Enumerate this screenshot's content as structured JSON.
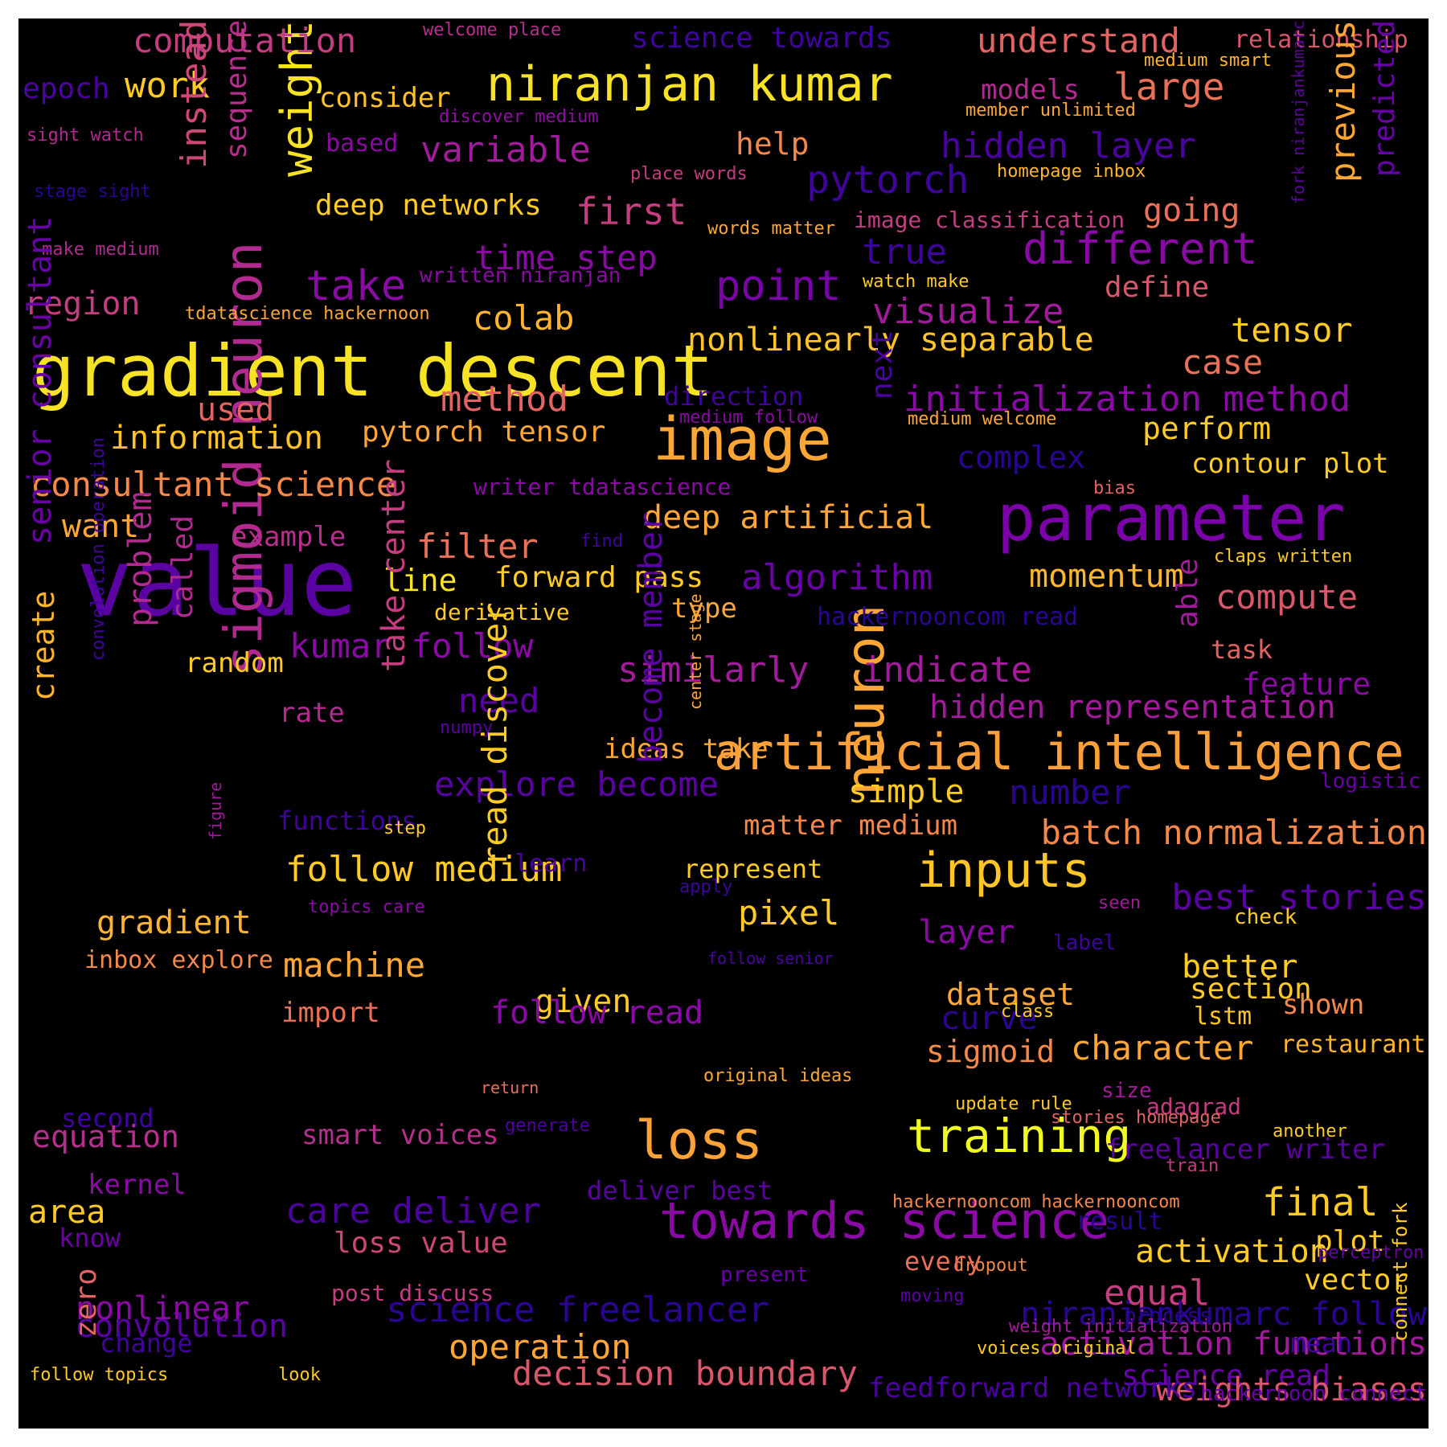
{
  "words": [
    {
      "text": "gradient descent",
      "color": "#f7e225"
    },
    {
      "text": "value",
      "color": "#5b02a3"
    },
    {
      "text": "parameter",
      "color": "#7a02a8"
    },
    {
      "text": "sigmoid neuron",
      "color": "#b02a8f"
    },
    {
      "text": "image",
      "color": "#fca636"
    },
    {
      "text": "neuron",
      "color": "#fca636"
    },
    {
      "text": "artificial intelligence",
      "color": "#fb9f3a"
    },
    {
      "text": "niranjan kumar",
      "color": "#f7e225"
    },
    {
      "text": "towards science",
      "color": "#8b0aa5"
    },
    {
      "text": "training",
      "color": "#f0f921"
    },
    {
      "text": "loss",
      "color": "#fba238"
    },
    {
      "text": "inputs",
      "color": "#fdc527"
    },
    {
      "text": "different",
      "color": "#8b0aa5"
    },
    {
      "text": "weight",
      "color": "#f7e225"
    },
    {
      "text": "point",
      "color": "#7a02a8"
    },
    {
      "text": "computation",
      "color": "#c33d80"
    },
    {
      "text": "understand",
      "color": "#e16462"
    },
    {
      "text": "relationship",
      "color": "#d8576b"
    },
    {
      "text": "science towards",
      "color": "#3e049c"
    },
    {
      "text": "welcome place",
      "color": "#b52f8c"
    },
    {
      "text": "medium smart",
      "color": "#fdb42f"
    },
    {
      "text": "epoch",
      "color": "#4c02a1"
    },
    {
      "text": "work",
      "color": "#fdca26"
    },
    {
      "text": "consider",
      "color": "#fdc328"
    },
    {
      "text": "models",
      "color": "#b12a90"
    },
    {
      "text": "large",
      "color": "#e97158"
    },
    {
      "text": "member unlimited",
      "color": "#fca636"
    },
    {
      "text": "sight watch",
      "color": "#b02a8f"
    },
    {
      "text": "based",
      "color": "#8b0aa5"
    },
    {
      "text": "discover medium",
      "color": "#8f0da4"
    },
    {
      "text": "variable",
      "color": "#a11b9b"
    },
    {
      "text": "help",
      "color": "#f48849"
    },
    {
      "text": "hidden layer",
      "color": "#4c02a1"
    },
    {
      "text": "predicted",
      "color": "#6a00a8"
    },
    {
      "text": "previous",
      "color": "#fca636"
    },
    {
      "text": "fork niranjankumarc",
      "color": "#5b02a3"
    },
    {
      "text": "instead",
      "color": "#cc4778"
    },
    {
      "text": "sequence",
      "color": "#b52f8c"
    },
    {
      "text": "stage sight",
      "color": "#2a0593"
    },
    {
      "text": "place words",
      "color": "#c33d80"
    },
    {
      "text": "homepage inbox",
      "color": "#fdb42f"
    },
    {
      "text": "pytorch",
      "color": "#3e049c"
    },
    {
      "text": "deep networks",
      "color": "#fdca26"
    },
    {
      "text": "first",
      "color": "#c33d80"
    },
    {
      "text": "image classification",
      "color": "#c33d80"
    },
    {
      "text": "going",
      "color": "#e97158"
    },
    {
      "text": "make medium",
      "color": "#b02a8f"
    },
    {
      "text": "words matter",
      "color": "#fca636"
    },
    {
      "text": "time step",
      "color": "#8b0aa5"
    },
    {
      "text": "true",
      "color": "#3e049c"
    },
    {
      "text": "take",
      "color": "#8b0aa5"
    },
    {
      "text": "written niranjan",
      "color": "#8b0aa5"
    },
    {
      "text": "watch make",
      "color": "#fdca26"
    },
    {
      "text": "define",
      "color": "#d8576b"
    },
    {
      "text": "region",
      "color": "#c33d80"
    },
    {
      "text": "tdatascience hackernoon",
      "color": "#fca636"
    },
    {
      "text": "colab",
      "color": "#fdb42f"
    },
    {
      "text": "visualize",
      "color": "#a11b9b"
    },
    {
      "text": "tensor",
      "color": "#fdca26"
    },
    {
      "text": "nonlinearly separable",
      "color": "#fdc328"
    },
    {
      "text": "case",
      "color": "#e97158"
    },
    {
      "text": "used",
      "color": "#e16462"
    },
    {
      "text": "method",
      "color": "#e16462"
    },
    {
      "text": "direction",
      "color": "#3e049c"
    },
    {
      "text": "initialization method",
      "color": "#8b0aa5"
    },
    {
      "text": "medium follow",
      "color": "#8b0aa5"
    },
    {
      "text": "medium welcome",
      "color": "#fca636"
    },
    {
      "text": "information",
      "color": "#fdc328"
    },
    {
      "text": "pytorch tensor",
      "color": "#fca636"
    },
    {
      "text": "next",
      "color": "#4c02a1"
    },
    {
      "text": "perform",
      "color": "#fdca26"
    },
    {
      "text": "complex",
      "color": "#2a0593"
    },
    {
      "text": "contour plot",
      "color": "#fdca26"
    },
    {
      "text": "consultant science",
      "color": "#f48849"
    },
    {
      "text": "writer tdatascience",
      "color": "#8b0aa5"
    },
    {
      "text": "bias",
      "color": "#e16462"
    },
    {
      "text": "want",
      "color": "#fca636"
    },
    {
      "text": "example",
      "color": "#b52f8c"
    },
    {
      "text": "deep artificial",
      "color": "#fca636"
    },
    {
      "text": "filter",
      "color": "#e97158"
    },
    {
      "text": "find",
      "color": "#3e049c"
    },
    {
      "text": "claps written",
      "color": "#fdca26"
    },
    {
      "text": "senior consultant",
      "color": "#6a00a8"
    },
    {
      "text": "line",
      "color": "#f7e225"
    },
    {
      "text": "forward pass",
      "color": "#fdca26"
    },
    {
      "text": "algorithm",
      "color": "#6a00a8"
    },
    {
      "text": "momentum",
      "color": "#fdb42f"
    },
    {
      "text": "compute",
      "color": "#d8576b"
    },
    {
      "text": "derivative",
      "color": "#fdca26"
    },
    {
      "text": "type",
      "color": "#fca636"
    },
    {
      "text": "hackernooncom read",
      "color": "#2a0593"
    },
    {
      "text": "problem",
      "color": "#b02a8f"
    },
    {
      "text": "called",
      "color": "#b02a8f"
    },
    {
      "text": "kumar follow",
      "color": "#8b0aa5"
    },
    {
      "text": "able",
      "color": "#a11b9b"
    },
    {
      "text": "task",
      "color": "#e16462"
    },
    {
      "text": "random",
      "color": "#fdca26"
    },
    {
      "text": "similarly",
      "color": "#a11b9b"
    },
    {
      "text": "indicate",
      "color": "#a11b9b"
    },
    {
      "text": "feature",
      "color": "#8b0aa5"
    },
    {
      "text": "create",
      "color": "#fdb42f"
    },
    {
      "text": "convolution operation",
      "color": "#3e049c"
    },
    {
      "text": "take center",
      "color": "#c33d80"
    },
    {
      "text": "need",
      "color": "#5b02a3"
    },
    {
      "text": "hidden representation",
      "color": "#a11b9b"
    },
    {
      "text": "rate",
      "color": "#b02a8f"
    },
    {
      "text": "numpy",
      "color": "#5b02a3"
    },
    {
      "text": "center stage",
      "color": "#fca636"
    },
    {
      "text": "ideas take",
      "color": "#fca636"
    },
    {
      "text": "become member",
      "color": "#5b02a3"
    },
    {
      "text": "logistic",
      "color": "#6a00a8"
    },
    {
      "text": "figure",
      "color": "#a11b9b"
    },
    {
      "text": "explore become",
      "color": "#5b02a3"
    },
    {
      "text": "simple",
      "color": "#fdca26"
    },
    {
      "text": "number",
      "color": "#2a0593"
    },
    {
      "text": "functions",
      "color": "#3e049c"
    },
    {
      "text": "step",
      "color": "#fdca26"
    },
    {
      "text": "matter medium",
      "color": "#f48849"
    },
    {
      "text": "batch normalization",
      "color": "#f48849"
    },
    {
      "text": "represent",
      "color": "#fdca26"
    },
    {
      "text": "follow medium",
      "color": "#fdca26"
    },
    {
      "text": "learn",
      "color": "#4c02a1"
    },
    {
      "text": "apply",
      "color": "#3e049c"
    },
    {
      "text": "read discover",
      "color": "#fdca26"
    },
    {
      "text": "best stories",
      "color": "#5b02a3"
    },
    {
      "text": "gradient",
      "color": "#fdb42f"
    },
    {
      "text": "pixel",
      "color": "#fdca26"
    },
    {
      "text": "seen",
      "color": "#a11b9b"
    },
    {
      "text": "check",
      "color": "#fdca26"
    },
    {
      "text": "topics care",
      "color": "#8b0aa5"
    },
    {
      "text": "follow senior",
      "color": "#4c02a1"
    },
    {
      "text": "inbox explore",
      "color": "#f48849"
    },
    {
      "text": "machine",
      "color": "#fca636"
    },
    {
      "text": "layer",
      "color": "#8b0aa5"
    },
    {
      "text": "label",
      "color": "#3e049c"
    },
    {
      "text": "better",
      "color": "#fdca26"
    },
    {
      "text": "given",
      "color": "#fdca26"
    },
    {
      "text": "dataset",
      "color": "#fca636"
    },
    {
      "text": "section",
      "color": "#fdca26"
    },
    {
      "text": "import",
      "color": "#e97158"
    },
    {
      "text": "lstm",
      "color": "#fdc328"
    },
    {
      "text": "shown",
      "color": "#f48849"
    },
    {
      "text": "curve",
      "color": "#2a0593"
    },
    {
      "text": "follow read",
      "color": "#8b0aa5"
    },
    {
      "text": "class",
      "color": "#fdca26"
    },
    {
      "text": "character",
      "color": "#fca636"
    },
    {
      "text": "sigmoid",
      "color": "#f48849"
    },
    {
      "text": "original ideas",
      "color": "#fca636"
    },
    {
      "text": "restaurant",
      "color": "#fdb42f"
    },
    {
      "text": "return",
      "color": "#e97158"
    },
    {
      "text": "size",
      "color": "#a11b9b"
    },
    {
      "text": "update rule",
      "color": "#fdca26"
    },
    {
      "text": "second",
      "color": "#3e049c"
    },
    {
      "text": "equation",
      "color": "#b52f8c"
    },
    {
      "text": "generate",
      "color": "#4c02a1"
    },
    {
      "text": "adagrad",
      "color": "#c33d80"
    },
    {
      "text": "smart voices",
      "color": "#b52f8c"
    },
    {
      "text": "stories homepage",
      "color": "#e16462"
    },
    {
      "text": "freelancer writer",
      "color": "#5b02a3"
    },
    {
      "text": "train",
      "color": "#c33d80"
    },
    {
      "text": "another",
      "color": "#fdca26"
    },
    {
      "text": "kernel",
      "color": "#8b0aa5"
    },
    {
      "text": "deliver best",
      "color": "#5b02a3"
    },
    {
      "text": "result",
      "color": "#2a0593"
    },
    {
      "text": "area",
      "color": "#fdca26"
    },
    {
      "text": "care deliver",
      "color": "#4c02a1"
    },
    {
      "text": "final",
      "color": "#fdca26"
    },
    {
      "text": "hackernooncom hackernooncom",
      "color": "#f48849"
    },
    {
      "text": "know",
      "color": "#6a00a8"
    },
    {
      "text": "activation",
      "color": "#fdca26"
    },
    {
      "text": "plot",
      "color": "#fdca26"
    },
    {
      "text": "dropout",
      "color": "#f48849"
    },
    {
      "text": "loss value",
      "color": "#cc4778"
    },
    {
      "text": "every",
      "color": "#e97158"
    },
    {
      "text": "present",
      "color": "#6a00a8"
    },
    {
      "text": "convolution",
      "color": "#5b02a3"
    },
    {
      "text": "perceptron",
      "color": "#6a00a8"
    },
    {
      "text": "vector",
      "color": "#fdca26"
    },
    {
      "text": "post discuss",
      "color": "#c33d80"
    },
    {
      "text": "equal",
      "color": "#c33d80"
    },
    {
      "text": "moving",
      "color": "#5b02a3"
    },
    {
      "text": "nonlinear",
      "color": "#8b0aa5"
    },
    {
      "text": "science freelancer",
      "color": "#2a0593"
    },
    {
      "text": "niranjankumarc follow",
      "color": "#2a0593"
    },
    {
      "text": "process",
      "color": "#2a0593"
    },
    {
      "text": "activation functions",
      "color": "#a11b9b"
    },
    {
      "text": "change",
      "color": "#3e049c"
    },
    {
      "text": "mean",
      "color": "#3e049c"
    },
    {
      "text": "connect fork",
      "color": "#fdca26"
    },
    {
      "text": "follow topics",
      "color": "#fdca26"
    },
    {
      "text": "look",
      "color": "#fdca26"
    },
    {
      "text": "operation",
      "color": "#fca636"
    },
    {
      "text": "voices original",
      "color": "#fdca26"
    },
    {
      "text": "science read",
      "color": "#6a00a8"
    },
    {
      "text": "weight initialization",
      "color": "#a11b9b"
    },
    {
      "text": "zero",
      "color": "#e16462"
    },
    {
      "text": "decision boundary",
      "color": "#d8576b"
    },
    {
      "text": "weights biases",
      "color": "#d8576b"
    },
    {
      "text": "feedforward networks",
      "color": "#4c02a1"
    },
    {
      "text": "hackernoon connect",
      "color": "#6a00a8"
    }
  ]
}
